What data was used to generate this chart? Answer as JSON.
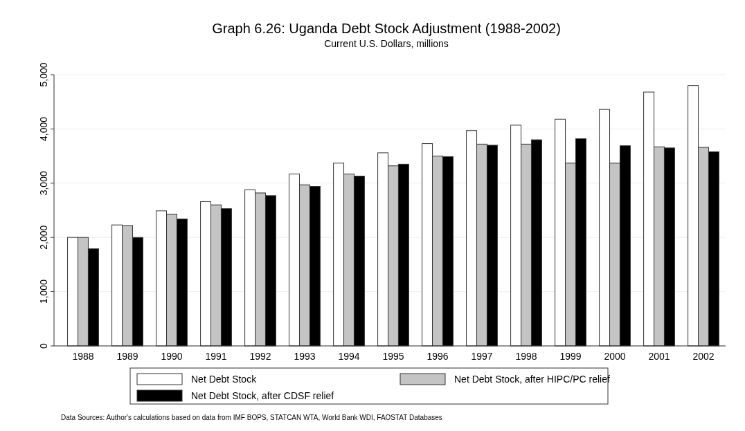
{
  "chart_data": {
    "type": "bar",
    "title": "Graph 6.26: Uganda Debt Stock Adjustment (1988-2002)",
    "subtitle": "Current U.S. Dollars, millions",
    "categories": [
      "1988",
      "1989",
      "1990",
      "1991",
      "1992",
      "1993",
      "1994",
      "1995",
      "1996",
      "1997",
      "1998",
      "1999",
      "2000",
      "2001",
      "2002"
    ],
    "series": [
      {
        "name": "Net Debt Stock",
        "color": "#ffffff",
        "values": [
          2000,
          2230,
          2490,
          2660,
          2880,
          3170,
          3370,
          3560,
          3730,
          3970,
          4070,
          4180,
          4360,
          4680,
          4800
        ]
      },
      {
        "name": "Net Debt Stock, after HIPC/PC relief",
        "color": "#c4c4c4",
        "values": [
          2000,
          2220,
          2430,
          2600,
          2820,
          2970,
          3170,
          3320,
          3500,
          3720,
          3720,
          3370,
          3370,
          3670,
          3660
        ]
      },
      {
        "name": "Net Debt Stock, after CDSF relief",
        "color": "#000000",
        "values": [
          1790,
          2000,
          2340,
          2530,
          2770,
          2940,
          3130,
          3350,
          3490,
          3700,
          3800,
          3820,
          3690,
          3650,
          3580
        ]
      }
    ],
    "ylim": [
      0,
      5000
    ],
    "yticks": [
      {
        "value": 0,
        "label": "0"
      },
      {
        "value": 1000,
        "label": "1,000"
      },
      {
        "value": 2000,
        "label": "2,000"
      },
      {
        "value": 3000,
        "label": "3,000"
      },
      {
        "value": 4000,
        "label": "4,000"
      },
      {
        "value": 5000,
        "label": "5,000"
      }
    ],
    "grid": "y",
    "legend": "bottom",
    "annotations": [
      "Data Sources: Author's calculations based on data from IMF BOPS, STATCAN WTA, World Bank WDI, FAOSTAT Databases"
    ]
  }
}
